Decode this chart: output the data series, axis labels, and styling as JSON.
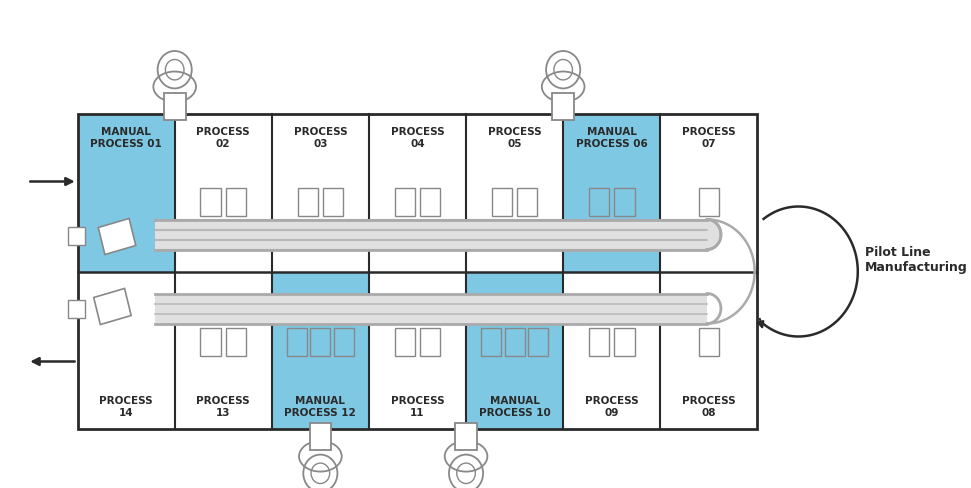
{
  "bg_color": "#ffffff",
  "blue_color": "#7ec8e3",
  "medium_gray": "#888888",
  "dark": "#2a2a2a",
  "light_gray": "#cccccc",
  "top_cells": [
    {
      "label": "MANUAL\nPROCESS 01",
      "manual": true
    },
    {
      "label": "PROCESS\n02",
      "manual": false
    },
    {
      "label": "PROCESS\n03",
      "manual": false
    },
    {
      "label": "PROCESS\n04",
      "manual": false
    },
    {
      "label": "PROCESS\n05",
      "manual": false
    },
    {
      "label": "MANUAL\nPROCESS 06",
      "manual": true
    },
    {
      "label": "PROCESS\n07",
      "manual": false
    }
  ],
  "bottom_cells": [
    {
      "label": "PROCESS\n14",
      "manual": false
    },
    {
      "label": "PROCESS\n13",
      "manual": false
    },
    {
      "label": "MANUAL\nPROCESS 12",
      "manual": true
    },
    {
      "label": "PROCESS\n11",
      "manual": false
    },
    {
      "label": "MANUAL\nPROCESS 10",
      "manual": true
    },
    {
      "label": "PROCESS\n09",
      "manual": false
    },
    {
      "label": "PROCESS\n08",
      "manual": false
    }
  ],
  "pilot_label": "Pilot Line\nManufacturing"
}
